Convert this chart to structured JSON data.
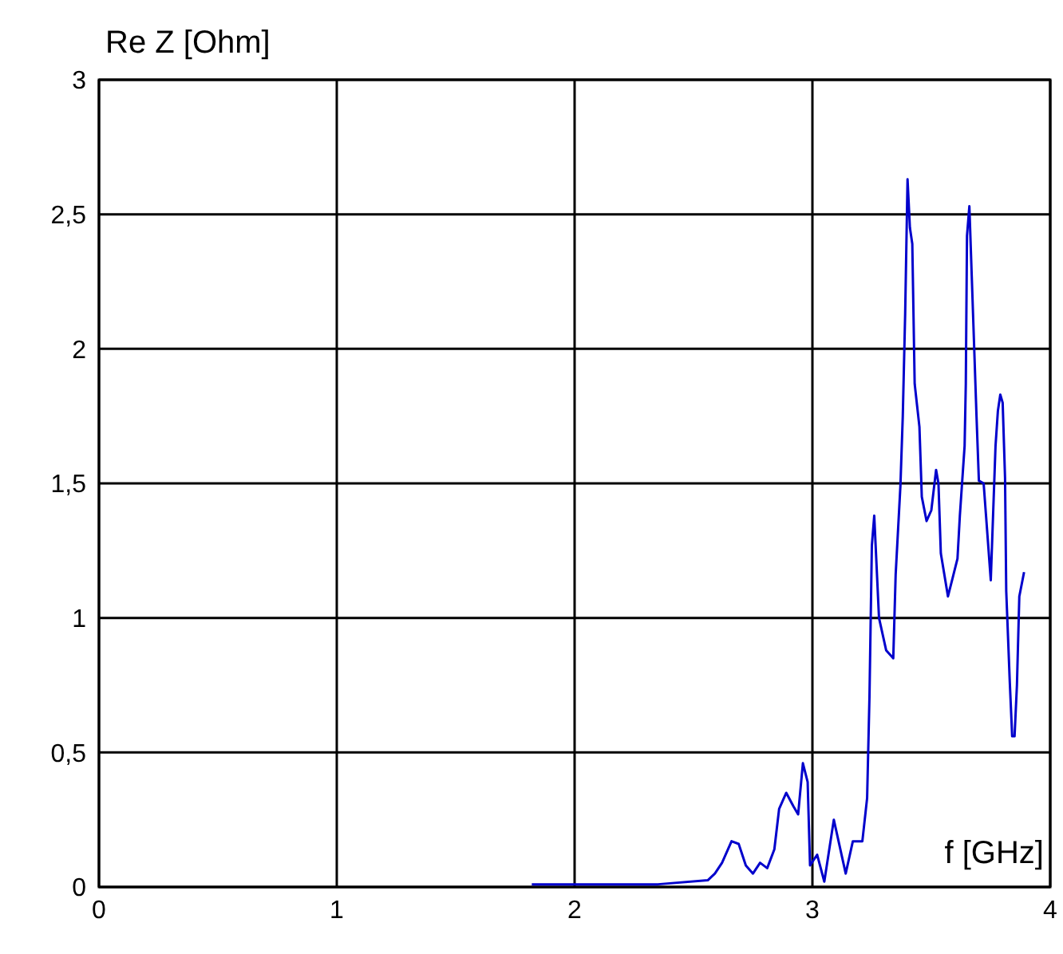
{
  "chart_data": {
    "type": "line",
    "xlabel": "f [GHz]",
    "ylabel": "Re Z [Ohm]",
    "x": [
      1.82,
      2.35,
      2.56,
      2.59,
      2.62,
      2.66,
      2.69,
      2.72,
      2.75,
      2.78,
      2.81,
      2.84,
      2.86,
      2.89,
      2.92,
      2.94,
      2.96,
      2.98,
      2.99,
      3.02,
      3.05,
      3.09,
      3.14,
      3.17,
      3.21,
      3.23,
      3.24,
      3.25,
      3.26,
      3.28,
      3.31,
      3.34,
      3.35,
      3.37,
      3.38,
      3.39,
      3.4,
      3.41,
      3.42,
      3.43,
      3.45,
      3.46,
      3.48,
      3.5,
      3.52,
      3.53,
      3.54,
      3.57,
      3.59,
      3.61,
      3.62,
      3.64,
      3.645,
      3.65,
      3.66,
      3.67,
      3.69,
      3.7,
      3.72,
      3.73,
      3.75,
      3.77,
      3.78,
      3.79,
      3.8,
      3.81,
      3.815,
      3.83,
      3.84,
      3.85,
      3.86,
      3.87,
      3.89
    ],
    "series": [
      {
        "color": "#0000cc",
        "values": [
          0.01,
          0.01,
          0.025,
          0.05,
          0.09,
          0.17,
          0.16,
          0.08,
          0.05,
          0.09,
          0.07,
          0.14,
          0.29,
          0.35,
          0.3,
          0.27,
          0.46,
          0.39,
          0.08,
          0.12,
          0.02,
          0.25,
          0.05,
          0.17,
          0.17,
          0.33,
          0.71,
          1.27,
          1.38,
          1.0,
          0.88,
          0.85,
          1.16,
          1.49,
          1.75,
          2.13,
          2.63,
          2.45,
          2.39,
          1.87,
          1.71,
          1.45,
          1.36,
          1.4,
          1.55,
          1.5,
          1.24,
          1.08,
          1.15,
          1.22,
          1.38,
          1.64,
          1.87,
          2.42,
          2.53,
          2.27,
          1.75,
          1.51,
          1.5,
          1.38,
          1.14,
          1.64,
          1.77,
          1.83,
          1.8,
          1.52,
          1.1,
          0.76,
          0.56,
          0.56,
          0.75,
          1.08,
          1.17
        ]
      }
    ],
    "xlim": [
      0,
      4
    ],
    "xticks": [
      0,
      1,
      2,
      3,
      4
    ],
    "ylim": [
      0,
      3
    ],
    "yticks": [
      0,
      {
        "value": 0.5,
        "label": "0,5"
      },
      1,
      {
        "value": 1.5,
        "label": "1,5"
      },
      2,
      {
        "value": 2.5,
        "label": "2,5"
      },
      3
    ],
    "grid": true,
    "marker": "none",
    "line_style": "solid"
  }
}
